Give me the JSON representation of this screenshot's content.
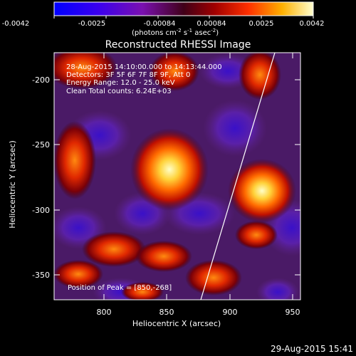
{
  "colorbar": {
    "ticks": [
      "-0.0042",
      "-0.0025",
      "-0.00084",
      "0.00084",
      "0.0025",
      "0.0042"
    ],
    "unit_label": "(photons cm",
    "unit_sup1": "-2",
    "unit_mid1": " s",
    "unit_sup2": "-1",
    "unit_mid2": " asec",
    "unit_sup3": "-2",
    "unit_end": ")"
  },
  "title": "Reconstructed RHESSI Image",
  "info": {
    "line1": "28-Aug-2015 14:10:00.000 to 14:13:44.000",
    "line2": "Detectors: 3F 5F 6F 7F 8F 9F, Att 0",
    "line3": "Energy Range: 12.0 - 25.0 keV",
    "line4": "Clean     Total counts: 6.24E+03"
  },
  "peak_note": "Position of Peak = [850,-268]",
  "xaxis": {
    "label": "Heliocentric X (arcsec)",
    "ticks": [
      "800",
      "850",
      "900",
      "950"
    ],
    "range": [
      762,
      957
    ]
  },
  "yaxis": {
    "label": "Heliocentric Y (arcsec)",
    "ticks": [
      "-200",
      "-250",
      "-300",
      "-350"
    ],
    "range": [
      -373,
      -168
    ]
  },
  "timestamp": "29-Aug-2015 15:41",
  "colors": {
    "background": "#000000",
    "text": "#ffffff"
  }
}
